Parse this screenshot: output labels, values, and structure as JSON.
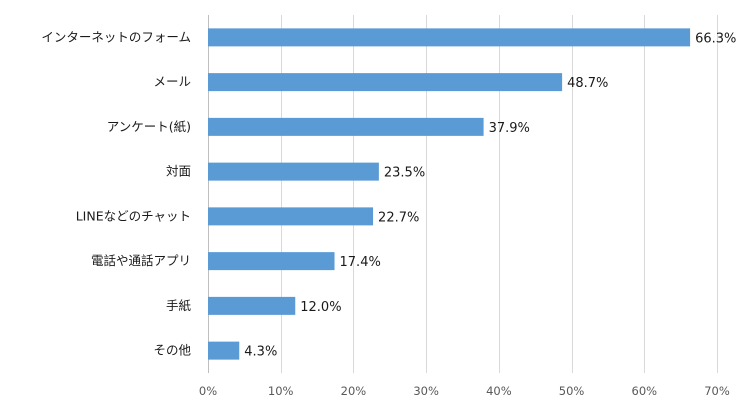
{
  "chart_data": {
    "type": "bar",
    "orientation": "horizontal",
    "categories": [
      "インターネットのフォーム",
      "メール",
      "アンケート(紙)",
      "対面",
      "LINEなどのチャット",
      "電話や通話アプリ",
      "手紙",
      "その他"
    ],
    "values": [
      66.3,
      48.7,
      37.9,
      23.5,
      22.7,
      17.4,
      12.0,
      4.3
    ],
    "data_labels": [
      "66.3%",
      "48.7%",
      "37.9%",
      "23.5%",
      "22.7%",
      "17.4%",
      "12.0%",
      "4.3%"
    ],
    "xlim": [
      0,
      70
    ],
    "x_ticks": [
      0,
      10,
      20,
      30,
      40,
      50,
      60,
      70
    ],
    "x_tick_labels": [
      "0%",
      "10%",
      "20%",
      "30%",
      "40%",
      "50%",
      "60%",
      "70%"
    ],
    "grid": true,
    "legend": "none",
    "bar_color": "#5b9bd5",
    "grid_color": "#d9d9d9"
  }
}
